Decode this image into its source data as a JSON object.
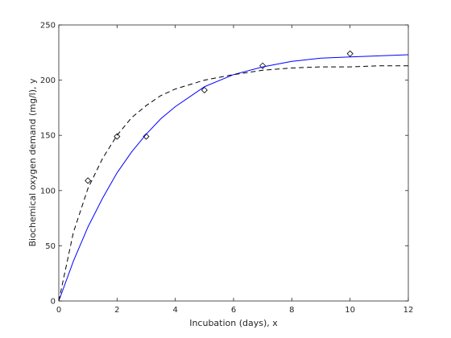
{
  "chart_data": {
    "type": "scatter",
    "title": "",
    "xlabel": "Incubation (days), x",
    "ylabel": "Biochemical oxygen demand (mg/l), y",
    "xlim": [
      0,
      12
    ],
    "ylim": [
      0,
      250
    ],
    "xticks": [
      "0",
      "2",
      "4",
      "6",
      "8",
      "10",
      "12"
    ],
    "yticks": [
      "0",
      "50",
      "100",
      "150",
      "200",
      "250"
    ],
    "grid": false,
    "legend": "none",
    "series": [
      {
        "kind": "points",
        "marker": "diamond",
        "color": "#000000",
        "x": [
          1,
          2,
          3,
          5,
          7,
          10
        ],
        "y": [
          109,
          149,
          149,
          191,
          213,
          224
        ]
      },
      {
        "kind": "line",
        "style": "solid",
        "color": "#0000ff",
        "x": [
          0,
          0.5,
          1,
          1.5,
          2,
          2.5,
          3,
          3.5,
          4,
          5,
          6,
          7,
          8,
          9,
          10,
          11,
          12
        ],
        "y": [
          0,
          36,
          67,
          93,
          116,
          135,
          151,
          165,
          176,
          194,
          205,
          212,
          217,
          220,
          221,
          222,
          223
        ]
      },
      {
        "kind": "line",
        "style": "dashed",
        "color": "#000000",
        "x": [
          0,
          0.5,
          1,
          1.5,
          2,
          2.5,
          3,
          3.5,
          4,
          5,
          6,
          7,
          8,
          9,
          10,
          11,
          12
        ],
        "y": [
          0,
          62,
          102,
          129,
          150,
          166,
          177,
          186,
          192,
          200,
          205,
          209,
          211,
          212,
          212,
          213,
          213
        ]
      }
    ]
  }
}
